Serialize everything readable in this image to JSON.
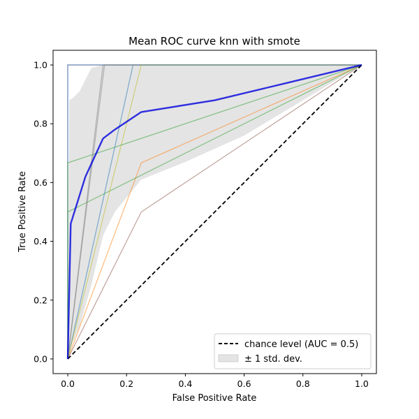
{
  "chart_data": {
    "type": "line",
    "title": "Mean ROC curve knn with smote",
    "xlabel": "False Positive Rate",
    "ylabel": "True Positive Rate",
    "xlim": [
      -0.05,
      1.05
    ],
    "ylim": [
      -0.05,
      1.05
    ],
    "xticks": [
      "0.0",
      "0.2",
      "0.4",
      "0.6",
      "0.8",
      "1.0"
    ],
    "yticks": [
      "0.0",
      "0.2",
      "0.4",
      "0.6",
      "0.8",
      "1.0"
    ],
    "grid": false,
    "legend_position": "lower-right",
    "legend": {
      "chance": "chance level (AUC = 0.5)",
      "band": "± 1 std. dev."
    },
    "fold_curves": [
      {
        "color": "#1f77b4",
        "points": [
          [
            0,
            0
          ],
          [
            0.222,
            1.0
          ],
          [
            1,
            1
          ]
        ]
      },
      {
        "color": "#ff7f0e",
        "points": [
          [
            0,
            0
          ],
          [
            0.25,
            0.667
          ],
          [
            1,
            1
          ]
        ]
      },
      {
        "color": "#2ca02c",
        "points": [
          [
            0,
            0
          ],
          [
            0,
            0.5
          ],
          [
            1,
            1
          ]
        ]
      },
      {
        "color": "#d62728",
        "points": [
          [
            0,
            0
          ],
          [
            0,
            1.0
          ],
          [
            1,
            1
          ]
        ]
      },
      {
        "color": "#9467bd",
        "points": [
          [
            0,
            0
          ],
          [
            0,
            1.0
          ],
          [
            1,
            1
          ]
        ]
      },
      {
        "color": "#8c564b",
        "points": [
          [
            0,
            0
          ],
          [
            0.25,
            0.5
          ],
          [
            1,
            1
          ]
        ]
      },
      {
        "color": "#e377c2",
        "points": [
          [
            0,
            0
          ],
          [
            0,
            1.0
          ],
          [
            1,
            1
          ]
        ]
      },
      {
        "color": "#7f7f7f",
        "points": [
          [
            0,
            0
          ],
          [
            0.125,
            1.0
          ],
          [
            1,
            1
          ]
        ]
      },
      {
        "color": "#bcbd22",
        "points": [
          [
            0,
            0
          ],
          [
            0.25,
            1.0
          ],
          [
            1,
            1
          ]
        ]
      },
      {
        "color": "#17becf",
        "points": [
          [
            0,
            0
          ],
          [
            0,
            1.0
          ],
          [
            1,
            1
          ]
        ]
      },
      {
        "color": "#2ca02c",
        "points": [
          [
            0,
            0
          ],
          [
            0,
            0.667
          ],
          [
            1,
            1
          ]
        ]
      },
      {
        "color": "#7f7f7f",
        "points": [
          [
            0,
            0
          ],
          [
            0.12,
            1.0
          ],
          [
            1,
            1
          ]
        ]
      }
    ],
    "mean_curve": {
      "color": "#0000dd",
      "points": [
        [
          0,
          0
        ],
        [
          0.01,
          0.46
        ],
        [
          0.06,
          0.62
        ],
        [
          0.12,
          0.75
        ],
        [
          0.16,
          0.78
        ],
        [
          0.25,
          0.84
        ],
        [
          0.5,
          0.88
        ],
        [
          0.75,
          0.94
        ],
        [
          1,
          1
        ]
      ]
    },
    "std_band": {
      "color": "#bbbbbb",
      "upper": [
        [
          0,
          0
        ],
        [
          0.005,
          0.88
        ],
        [
          0.02,
          0.89
        ],
        [
          0.04,
          0.91
        ],
        [
          0.06,
          0.95
        ],
        [
          0.08,
          0.99
        ],
        [
          0.12,
          1.0
        ],
        [
          1,
          1
        ]
      ],
      "lower": [
        [
          0,
          0
        ],
        [
          0.01,
          0.04
        ],
        [
          0.04,
          0.11
        ],
        [
          0.08,
          0.25
        ],
        [
          0.12,
          0.42
        ],
        [
          0.16,
          0.5
        ],
        [
          0.25,
          0.61
        ],
        [
          0.4,
          0.67
        ],
        [
          0.6,
          0.76
        ],
        [
          0.8,
          0.88
        ],
        [
          1,
          1
        ]
      ]
    },
    "chance_line": {
      "points": [
        [
          0,
          0
        ],
        [
          1,
          1
        ]
      ],
      "color": "#000000"
    }
  }
}
